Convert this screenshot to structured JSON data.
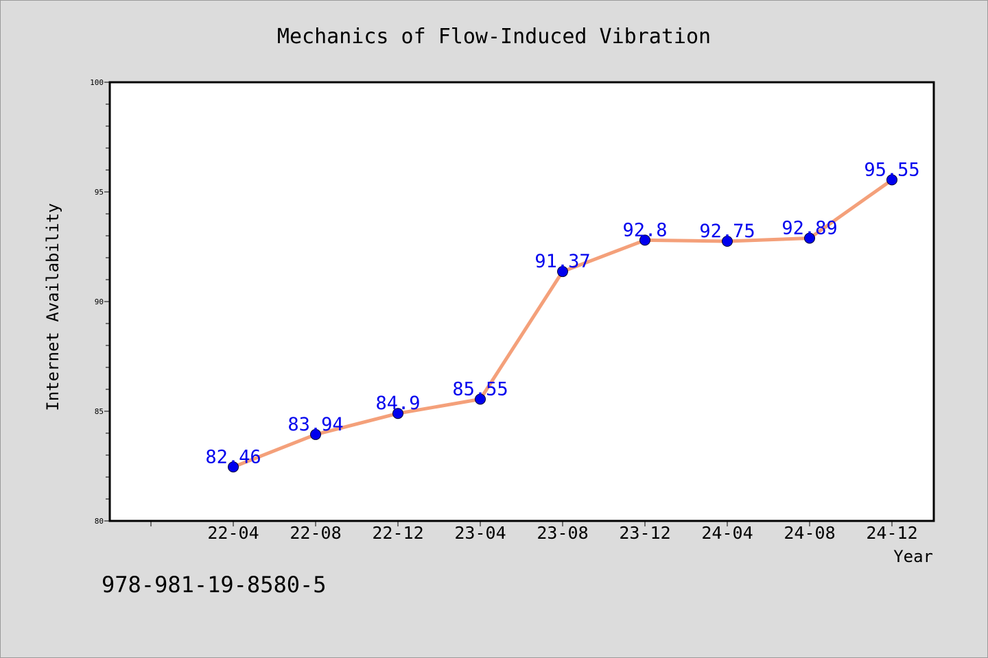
{
  "chart_data": {
    "type": "line",
    "title": "Mechanics of Flow-Induced Vibration",
    "xlabel": "Year",
    "ylabel": "Internet Availability",
    "categories": [
      "22-04",
      "22-08",
      "22-12",
      "23-04",
      "23-08",
      "23-12",
      "24-04",
      "24-08",
      "24-12"
    ],
    "series": [
      {
        "values": [
          82.46,
          83.94,
          84.9,
          85.55,
          91.37,
          92.8,
          92.75,
          92.89,
          95.55
        ],
        "labels": [
          "82.46",
          "83.94",
          "84.9",
          "85.55",
          "91.37",
          "92.8",
          "92.75",
          "92.89",
          "95.55"
        ],
        "line_color": "#f4a07a",
        "marker_color": "#0000ee",
        "label_color": "#0000ee"
      }
    ],
    "ylim": [
      80,
      100
    ],
    "yticks": [
      "80",
      "85",
      "90",
      "95",
      "100"
    ],
    "grid": false,
    "legend": "none"
  },
  "footer": {
    "isbn": "978-981-19-8580-5"
  },
  "colors": {
    "background": "#dcdcdc",
    "plot_background": "#ffffff",
    "axis": "#000000"
  }
}
